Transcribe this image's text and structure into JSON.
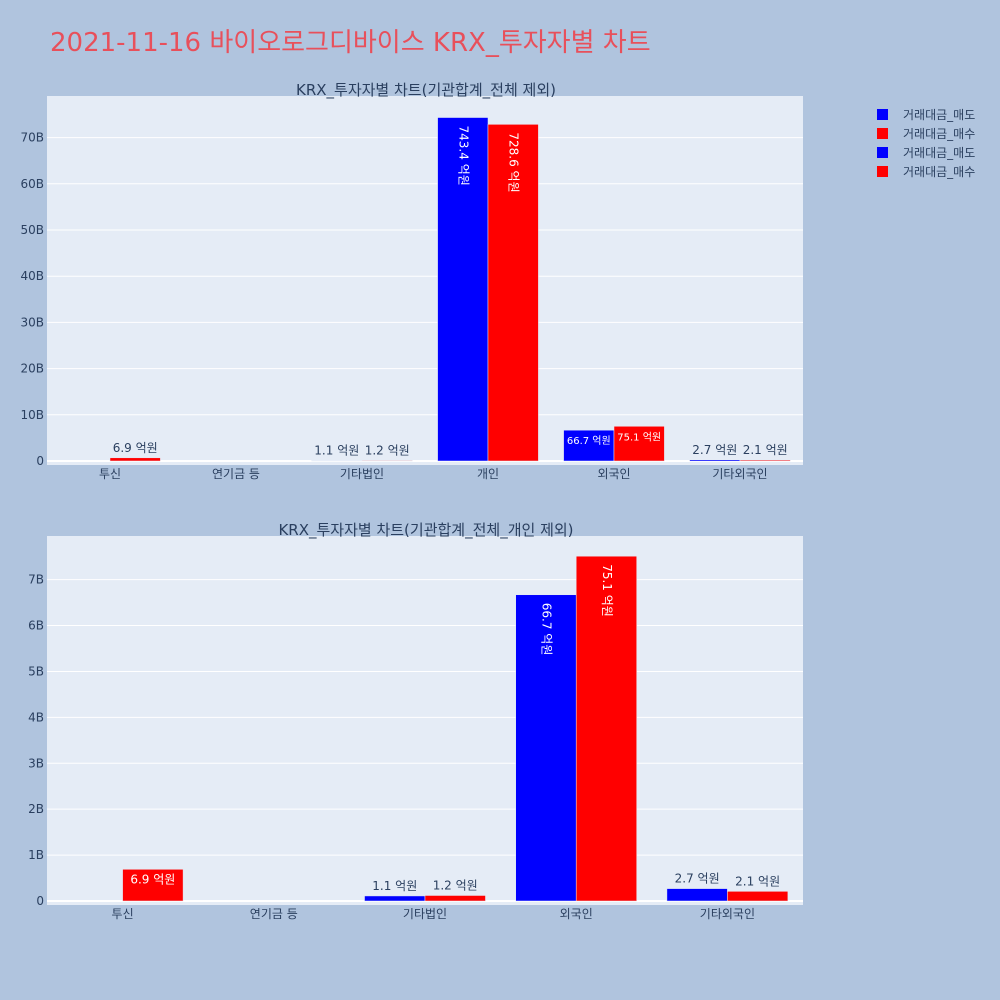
{
  "title": "2021-11-16 바이오로그디바이스 KRX_투자자별 차트",
  "colors": {
    "background": "#b0c4de",
    "plot_bg": "#e5ecf6",
    "title": "#e8505b",
    "sell": "#0000ff",
    "buy": "#ff0000"
  },
  "legend": {
    "placement": "top-right",
    "items": [
      {
        "label": "거래대금_매도",
        "color": "#0000ff"
      },
      {
        "label": "거래대금_매수",
        "color": "#ff0000"
      },
      {
        "label": "거래대금_매도",
        "color": "#0000ff"
      },
      {
        "label": "거래대금_매수",
        "color": "#ff0000"
      }
    ]
  },
  "chart_data": [
    {
      "type": "bar",
      "title": "KRX_투자자별 차트(기관합계_전체 제외)",
      "categories": [
        "투신",
        "연기금 등",
        "기타법인",
        "개인",
        "외국인",
        "기타외국인"
      ],
      "ylim": [
        0,
        79000000000
      ],
      "yticks": [
        0,
        10000000000,
        20000000000,
        30000000000,
        40000000000,
        50000000000,
        60000000000,
        70000000000
      ],
      "yticklabels": [
        "0",
        "10B",
        "20B",
        "30B",
        "40B",
        "50B",
        "60B",
        "70B"
      ],
      "grid": true,
      "series": [
        {
          "name": "거래대금_매도",
          "color": "#0000ff",
          "values": [
            0,
            0,
            110000000,
            74340000000,
            6670000000,
            270000000
          ],
          "labels": [
            "",
            "",
            "1.1 억원",
            "743.4 억원",
            "66.7 억원",
            "2.7 억원"
          ]
        },
        {
          "name": "거래대금_매수",
          "color": "#ff0000",
          "values": [
            690000000,
            0,
            120000000,
            72860000000,
            7510000000,
            210000000
          ],
          "labels": [
            "6.9 억원",
            "",
            "1.2 억원",
            "728.6 억원",
            "75.1 억원",
            "2.1 억원"
          ]
        }
      ]
    },
    {
      "type": "bar",
      "title": "KRX_투자자별 차트(기관합계_전체_개인 제외)",
      "categories": [
        "투신",
        "연기금 등",
        "기타법인",
        "외국인",
        "기타외국인"
      ],
      "ylim": [
        0,
        7950000000
      ],
      "yticks": [
        0,
        1000000000,
        2000000000,
        3000000000,
        4000000000,
        5000000000,
        6000000000,
        7000000000
      ],
      "yticklabels": [
        "0",
        "1B",
        "2B",
        "3B",
        "4B",
        "5B",
        "6B",
        "7B"
      ],
      "grid": true,
      "series": [
        {
          "name": "거래대금_매도",
          "color": "#0000ff",
          "values": [
            0,
            0,
            110000000,
            6670000000,
            270000000
          ],
          "labels": [
            "",
            "",
            "1.1 억원",
            "66.7 억원",
            "2.7 억원"
          ]
        },
        {
          "name": "거래대금_매수",
          "color": "#ff0000",
          "values": [
            690000000,
            0,
            120000000,
            7510000000,
            210000000
          ],
          "labels": [
            "6.9 억원",
            "",
            "1.2 억원",
            "75.1 억원",
            "2.1 억원"
          ]
        }
      ]
    }
  ]
}
